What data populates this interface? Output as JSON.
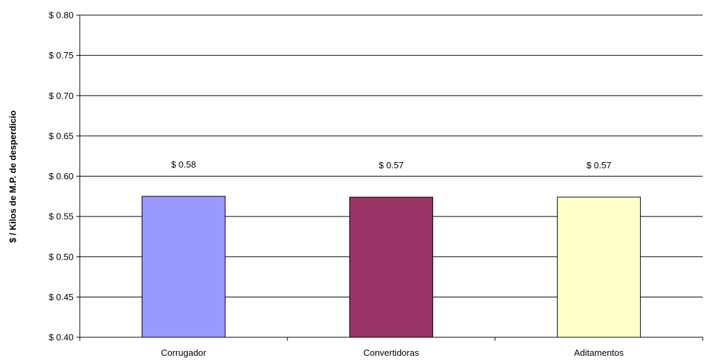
{
  "chart_data": {
    "type": "bar",
    "categories": [
      "Corrugador",
      "Convertidoras",
      "Aditamentos"
    ],
    "values": [
      0.575,
      0.574,
      0.574
    ],
    "data_labels": [
      "$ 0.58",
      "$ 0.57",
      "$ 0.57"
    ],
    "bar_colors": [
      "#9999ff",
      "#993366",
      "#ffffcc"
    ],
    "title": "",
    "xlabel": "",
    "ylabel": "$ / Kilos de M.P. de desperdicio",
    "ylim": [
      0.4,
      0.8
    ],
    "yticks": [
      0.4,
      0.45,
      0.5,
      0.55,
      0.6,
      0.65,
      0.7,
      0.75,
      0.8
    ],
    "ytick_labels": [
      "$ 0.40",
      "$ 0.45",
      "$ 0.50",
      "$ 0.55",
      "$ 0.60",
      "$ 0.65",
      "$ 0.70",
      "$ 0.75",
      "$ 0.80"
    ],
    "grid": true,
    "legend": "none"
  }
}
